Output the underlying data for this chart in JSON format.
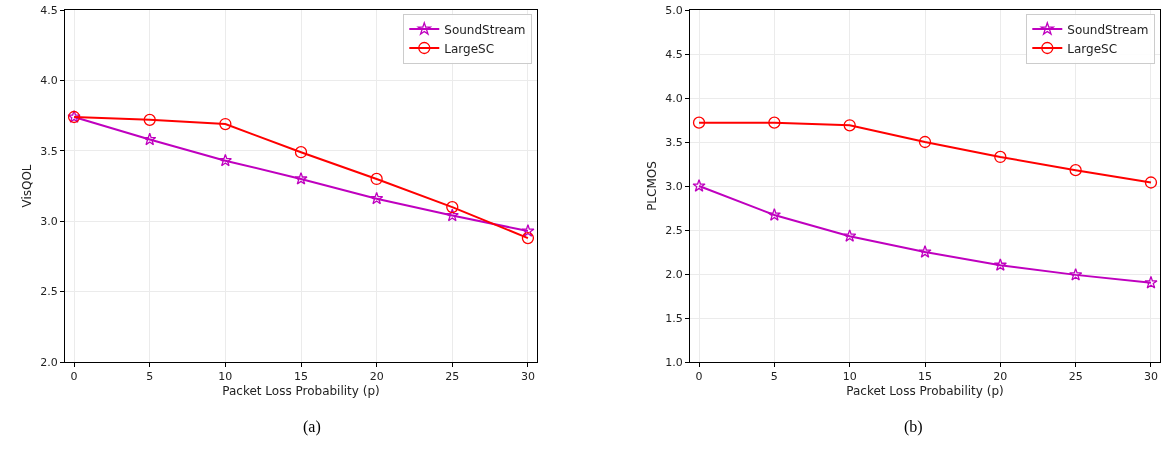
{
  "chart_data": [
    {
      "type": "line",
      "xlabel": "Packet Loss Probability (p)",
      "ylabel": "VisQOL",
      "x": [
        0,
        5,
        10,
        15,
        20,
        25,
        30
      ],
      "series": [
        {
          "name": "SoundStream",
          "color": "#bf00bf",
          "marker": "star",
          "values": [
            3.74,
            3.58,
            3.43,
            3.3,
            3.16,
            3.04,
            2.93
          ]
        },
        {
          "name": "LargeSC",
          "color": "#ff0000",
          "marker": "circle",
          "values": [
            3.74,
            3.72,
            3.69,
            3.49,
            3.3,
            3.1,
            2.88
          ]
        }
      ],
      "xlim": [
        -0.6,
        30.6
      ],
      "xticks": [
        0,
        5,
        10,
        15,
        20,
        25,
        30
      ],
      "ylim": [
        2.0,
        4.5
      ],
      "yticks": [
        {
          "value": 2.0,
          "label": "2.0"
        },
        {
          "value": 2.5,
          "label": "2.5"
        },
        {
          "value": 3.0,
          "label": "3.0"
        },
        {
          "value": 3.5,
          "label": "3.5"
        },
        {
          "value": 4.0,
          "label": "4.0"
        },
        {
          "value": 4.5,
          "label": "4.5"
        }
      ],
      "grid": true,
      "legend": "top right",
      "annotations": [
        "(a)"
      ]
    },
    {
      "type": "line",
      "xlabel": "Packet Loss Probability (p)",
      "ylabel": "PLCMOS",
      "x": [
        0,
        5,
        10,
        15,
        20,
        25,
        30
      ],
      "series": [
        {
          "name": "SoundStream",
          "color": "#bf00bf",
          "marker": "star",
          "values": [
            3.0,
            2.67,
            2.43,
            2.25,
            2.1,
            1.99,
            1.9
          ]
        },
        {
          "name": "LargeSC",
          "color": "#ff0000",
          "marker": "circle",
          "values": [
            3.72,
            3.72,
            3.69,
            3.5,
            3.33,
            3.18,
            3.04
          ]
        }
      ],
      "xlim": [
        -0.6,
        30.6
      ],
      "xticks": [
        0,
        5,
        10,
        15,
        20,
        25,
        30
      ],
      "ylim": [
        1.0,
        5.0
      ],
      "yticks": [
        {
          "value": 1.0,
          "label": "1.0"
        },
        {
          "value": 1.5,
          "label": "1.5"
        },
        {
          "value": 2.0,
          "label": "2.0"
        },
        {
          "value": 2.5,
          "label": "2.5"
        },
        {
          "value": 3.0,
          "label": "3.0"
        },
        {
          "value": 3.5,
          "label": "3.5"
        },
        {
          "value": 4.0,
          "label": "4.0"
        },
        {
          "value": 4.5,
          "label": "4.5"
        },
        {
          "value": 5.0,
          "label": "5.0"
        }
      ],
      "grid": true,
      "legend": "top right",
      "annotations": [
        "(b)"
      ]
    }
  ]
}
